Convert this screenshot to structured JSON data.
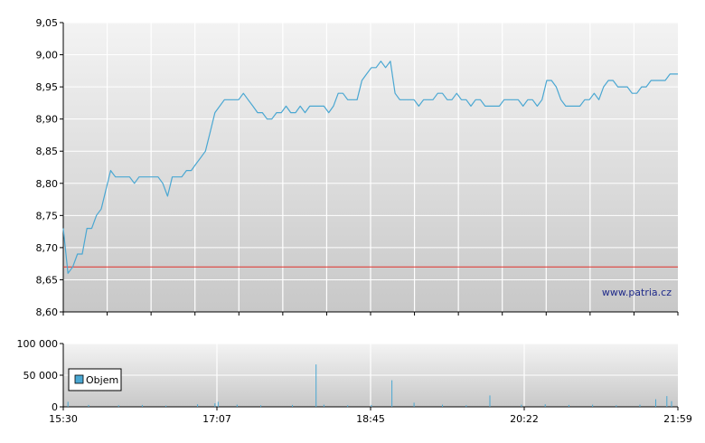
{
  "colors": {
    "price_line": "#4aa7d2",
    "reference_line": "#e0302a",
    "volume_bar": "#4aa7d2",
    "grid": "#ffffff",
    "plot_top": "#f3f3f3",
    "plot_bottom": "#c8c8c8",
    "watermark": "#1f2a8a"
  },
  "watermark": "www.patria.cz",
  "chart_data": [
    {
      "type": "line",
      "title": "",
      "xlabel": "",
      "ylabel": "",
      "ylim": [
        8.6,
        9.05
      ],
      "y_ticks": [
        "8,60",
        "8,65",
        "8,70",
        "8,75",
        "8,80",
        "8,85",
        "8,90",
        "8,95",
        "9,00",
        "9,05"
      ],
      "y_tick_values": [
        8.6,
        8.65,
        8.7,
        8.75,
        8.8,
        8.85,
        8.9,
        8.95,
        9.0,
        9.05
      ],
      "grid": true,
      "reference_line": 8.67,
      "xlim": [
        "15:30",
        "21:59"
      ],
      "x": [
        "15:30",
        "15:33",
        "15:36",
        "15:39",
        "15:42",
        "15:45",
        "15:48",
        "15:51",
        "15:54",
        "15:57",
        "16:00",
        "16:03",
        "16:06",
        "16:09",
        "16:12",
        "16:15",
        "16:18",
        "16:21",
        "16:24",
        "16:27",
        "16:30",
        "16:33",
        "16:36",
        "16:39",
        "16:42",
        "16:45",
        "16:48",
        "16:51",
        "16:54",
        "16:57",
        "17:00",
        "17:03",
        "17:06",
        "17:09",
        "17:12",
        "17:15",
        "17:18",
        "17:21",
        "17:24",
        "17:27",
        "17:30",
        "17:33",
        "17:36",
        "17:39",
        "17:42",
        "17:45",
        "17:48",
        "17:51",
        "17:54",
        "17:57",
        "18:00",
        "18:03",
        "18:06",
        "18:09",
        "18:12",
        "18:15",
        "18:18",
        "18:21",
        "18:24",
        "18:27",
        "18:30",
        "18:33",
        "18:36",
        "18:39",
        "18:42",
        "18:45",
        "18:48",
        "18:51",
        "18:54",
        "18:57",
        "19:00",
        "19:03",
        "19:06",
        "19:09",
        "19:12",
        "19:15",
        "19:18",
        "19:21",
        "19:24",
        "19:27",
        "19:30",
        "19:33",
        "19:36",
        "19:39",
        "19:42",
        "19:45",
        "19:48",
        "19:51",
        "19:54",
        "19:57",
        "20:00",
        "20:03",
        "20:06",
        "20:09",
        "20:12",
        "20:15",
        "20:18",
        "20:21",
        "20:24",
        "20:27",
        "20:30",
        "20:33",
        "20:36",
        "20:39",
        "20:42",
        "20:45",
        "20:48",
        "20:51",
        "20:54",
        "20:57",
        "21:00",
        "21:03",
        "21:06",
        "21:09",
        "21:12",
        "21:15",
        "21:18",
        "21:21",
        "21:24",
        "21:27",
        "21:30",
        "21:33",
        "21:36",
        "21:39",
        "21:42",
        "21:45",
        "21:48",
        "21:51",
        "21:54",
        "21:57",
        "21:59"
      ],
      "values": [
        8.73,
        8.66,
        8.67,
        8.69,
        8.69,
        8.73,
        8.73,
        8.75,
        8.76,
        8.79,
        8.82,
        8.81,
        8.81,
        8.81,
        8.81,
        8.8,
        8.81,
        8.81,
        8.81,
        8.81,
        8.81,
        8.8,
        8.78,
        8.81,
        8.81,
        8.81,
        8.82,
        8.82,
        8.83,
        8.84,
        8.85,
        8.88,
        8.91,
        8.92,
        8.93,
        8.93,
        8.93,
        8.93,
        8.94,
        8.93,
        8.92,
        8.91,
        8.91,
        8.9,
        8.9,
        8.91,
        8.91,
        8.92,
        8.91,
        8.91,
        8.92,
        8.91,
        8.92,
        8.92,
        8.92,
        8.92,
        8.91,
        8.92,
        8.94,
        8.94,
        8.93,
        8.93,
        8.93,
        8.96,
        8.97,
        8.98,
        8.98,
        8.99,
        8.98,
        8.99,
        8.94,
        8.93,
        8.93,
        8.93,
        8.93,
        8.92,
        8.93,
        8.93,
        8.93,
        8.94,
        8.94,
        8.93,
        8.93,
        8.94,
        8.93,
        8.93,
        8.92,
        8.93,
        8.93,
        8.92,
        8.92,
        8.92,
        8.92,
        8.93,
        8.93,
        8.93,
        8.93,
        8.92,
        8.93,
        8.93,
        8.92,
        8.93,
        8.96,
        8.96,
        8.95,
        8.93,
        8.92,
        8.92,
        8.92,
        8.92,
        8.93,
        8.93,
        8.94,
        8.93,
        8.95,
        8.96,
        8.96,
        8.95,
        8.95,
        8.95,
        8.94,
        8.94,
        8.95,
        8.95,
        8.96,
        8.96,
        8.96,
        8.96,
        8.97,
        8.97,
        8.97
      ]
    },
    {
      "type": "bar",
      "title": "",
      "legend": [
        "Objem"
      ],
      "legend_position": "bottom-left",
      "ylim": [
        0,
        100000
      ],
      "y_ticks": [
        "0",
        "50 000",
        "100 000"
      ],
      "y_tick_values": [
        0,
        50000,
        100000
      ],
      "x_ticks": [
        "15:30",
        "17:07",
        "18:45",
        "20:22",
        "21:59"
      ],
      "x": [
        "15:33",
        "15:46",
        "16:05",
        "16:20",
        "16:35",
        "16:55",
        "17:06",
        "17:08",
        "17:20",
        "17:35",
        "17:55",
        "18:10",
        "18:15",
        "18:30",
        "18:45",
        "18:58",
        "19:12",
        "19:30",
        "19:45",
        "20:00",
        "20:20",
        "20:35",
        "20:50",
        "21:05",
        "21:20",
        "21:35",
        "21:45",
        "21:52",
        "21:55"
      ],
      "values": [
        8000,
        3000,
        2500,
        3000,
        2000,
        4000,
        5500,
        8000,
        3500,
        2500,
        3000,
        67000,
        3500,
        2500,
        3000,
        42000,
        6500,
        3500,
        2500,
        18000,
        3500,
        4000,
        3000,
        3500,
        2500,
        3500,
        12000,
        17000,
        9000
      ],
      "grid": true
    }
  ]
}
